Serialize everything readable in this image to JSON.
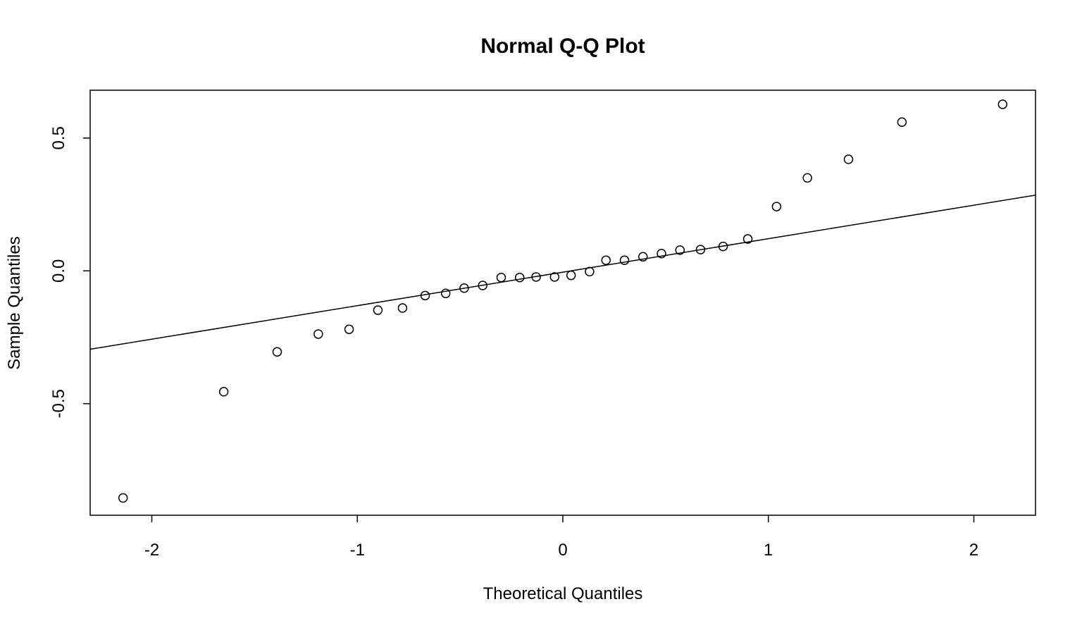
{
  "chart_data": {
    "type": "scatter",
    "title": "Normal Q-Q Plot",
    "xlabel": "Theoretical Quantiles",
    "ylabel": "Sample Quantiles",
    "xlim": [
      -2.3,
      2.3
    ],
    "ylim": [
      -0.92,
      0.68
    ],
    "x_ticks": [
      -2,
      -1,
      0,
      1,
      2
    ],
    "x_tick_labels": [
      "-2",
      "-1",
      "0",
      "1",
      "2"
    ],
    "y_ticks": [
      -0.5,
      0.0,
      0.5
    ],
    "y_tick_labels": [
      "-0.5",
      "0.0",
      "0.5"
    ],
    "grid": false,
    "legend": "none",
    "marker": "open-circle",
    "colors": {
      "points": "#000000",
      "line": "#000000",
      "frame": "#000000"
    },
    "series": [
      {
        "x": [
          -2.14,
          -1.65,
          -1.39,
          -1.19,
          -1.04,
          -0.9,
          -0.78,
          -0.67,
          -0.57,
          -0.48,
          -0.39,
          -0.3,
          -0.21,
          -0.13,
          -0.04,
          0.04,
          0.13,
          0.21,
          0.3,
          0.39,
          0.48,
          0.57,
          0.67,
          0.78,
          0.9,
          1.04,
          1.19,
          1.39,
          1.65,
          2.14
        ],
        "y": [
          -0.855,
          -0.455,
          -0.305,
          -0.238,
          -0.22,
          -0.148,
          -0.14,
          -0.093,
          -0.085,
          -0.065,
          -0.055,
          -0.025,
          -0.025,
          -0.023,
          -0.023,
          -0.017,
          -0.003,
          0.04,
          0.04,
          0.053,
          0.065,
          0.078,
          0.08,
          0.092,
          0.12,
          0.242,
          0.35,
          0.42,
          0.56,
          0.627
        ]
      }
    ],
    "reference_line": {
      "x1": -2.3,
      "y1": -0.295,
      "x2": 2.3,
      "y2": 0.285
    }
  }
}
